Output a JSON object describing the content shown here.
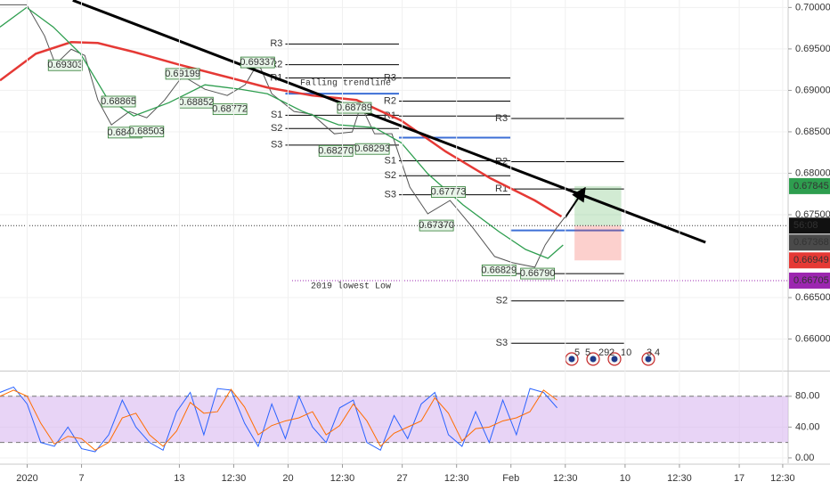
{
  "chart_data": [
    {
      "type": "line",
      "xlim": [
        -5,
        140
      ],
      "ylim": [
        0.6563,
        0.7009
      ],
      "yticks": [
        {
          "value": 0.7,
          "label": "0.70000"
        },
        {
          "value": 0.695,
          "label": "0.69500"
        },
        {
          "value": 0.69,
          "label": "0.69000"
        },
        {
          "value": 0.685,
          "label": "0.68500"
        },
        {
          "value": 0.68,
          "label": "0.68000"
        },
        {
          "value": 0.675,
          "label": "0.67500"
        },
        {
          "value": 0.665,
          "label": "0.66500"
        },
        {
          "value": 0.66,
          "label": "0.66000"
        }
      ],
      "grid": true,
      "series": [
        {
          "color": "#555555",
          "x": [
            -5,
            -0.1,
            3.2,
            5.2,
            8.1,
            10.6,
            13.0,
            15.5,
            18.8,
            22.0,
            25.3,
            28.6,
            32.7,
            36.8,
            40.1,
            42.5,
            45.0,
            49.1,
            52.4,
            56.5,
            59.8,
            61.4,
            63.9,
            67.1,
            70.4,
            73.7,
            77.8,
            81.9,
            86.0,
            89.3,
            93.4,
            95.3,
            97.5,
            98.9
          ],
          "values": [
            0.70032,
            0.70032,
            0.69657,
            0.69313,
            0.69496,
            0.69421,
            0.68884,
            0.68584,
            0.68745,
            0.68669,
            0.68884,
            0.69174,
            0.69013,
            0.68938,
            0.69067,
            0.69335,
            0.68959,
            0.68745,
            0.68712,
            0.68476,
            0.68498,
            0.6882,
            0.68476,
            0.68476,
            0.67833,
            0.67511,
            0.67672,
            0.6735,
            0.66996,
            0.66921,
            0.66867,
            0.67135,
            0.6735,
            0.67468
          ]
        },
        {
          "color": "#e53935",
          "x": [
            -5,
            1.6,
            8.1,
            13.0,
            19.6,
            27.8,
            36.0,
            44.2,
            52.4,
            60.6,
            68.8,
            77.0,
            85.2,
            93.4,
            98.3
          ],
          "values": [
            0.6912,
            0.69442,
            0.69582,
            0.69571,
            0.69464,
            0.69313,
            0.69174,
            0.69034,
            0.68938,
            0.68884,
            0.68637,
            0.68262,
            0.6794,
            0.67672,
            0.67478
          ]
        },
        {
          "color": "#2e9e4f",
          "x": [
            -5,
            -0.1,
            4.8,
            9.8,
            14.7,
            19.6,
            26.1,
            32.7,
            39.3,
            44.2,
            50.7,
            57.3,
            63.9,
            68.8,
            73.7,
            80.2,
            86.8,
            91.7,
            95.8,
            98.6
          ],
          "values": [
            0.69764,
            0.7,
            0.69764,
            0.69442,
            0.68906,
            0.68691,
            0.68852,
            0.69067,
            0.69013,
            0.68959,
            0.68745,
            0.68584,
            0.68551,
            0.68369,
            0.67994,
            0.67618,
            0.67296,
            0.67081,
            0.66974,
            0.67135
          ]
        }
      ],
      "swing_labels": {
        "x": [
          7.0,
          28.6,
          42.4,
          16.8,
          31.1,
          37.3,
          18.0,
          22.0,
          60.2,
          56.8,
          63.5,
          77.5,
          75.3,
          86.8,
          93.9
        ],
        "values": [
          0.69303,
          0.69199,
          0.69337,
          0.68865,
          0.68852,
          0.68772,
          0.6849,
          0.68503,
          0.68789,
          0.6827,
          0.68293,
          0.67773,
          0.6737,
          0.66829,
          0.6679
        ],
        "value_labels": [
          "0.69303",
          "0.69199",
          "0.69337",
          "0.68865",
          "0.68852",
          "0.68772",
          "0.68490",
          "0.68503",
          "0.68789",
          "0.68270",
          "0.68293",
          "0.67773",
          "0.67370",
          "0.66829",
          "0.66790"
        ]
      },
      "pivots": [
        {
          "x": [
            47.5,
            68.4
          ],
          "levels": [
            0.6956,
            0.6931,
            0.6915,
            0.6896,
            0.687,
            0.6854,
            0.6834
          ],
          "labels": [
            "R3",
            "R2",
            "R1",
            null,
            "S1",
            "S2",
            "S3"
          ]
        },
        {
          "x": [
            68.4,
            88.9
          ],
          "levels": [
            0.6915,
            0.6887,
            0.6869,
            0.6843,
            0.6815,
            0.6797,
            0.6774
          ],
          "labels": [
            "R3",
            "R2",
            "R1",
            null,
            "S1",
            "S2",
            "S3"
          ]
        },
        {
          "x": [
            88.9,
            109.8
          ],
          "levels": [
            0.6866,
            0.6814,
            0.6781,
            0.6731,
            0.6679,
            0.6646,
            0.6595
          ],
          "labels": [
            "R3",
            "R2",
            "R1",
            null,
            null,
            "S2",
            "S3"
          ]
        }
      ],
      "pivot_color": "#000000",
      "pivot_mid_color": "#3d6fd6",
      "trendline": {
        "x": [
          8.4,
          124.8
        ],
        "values": [
          0.70086,
          0.67167
        ]
      },
      "arrow": {
        "x": [
          98.9,
          102.4
        ],
        "values": [
          0.67457,
          0.678
        ]
      },
      "position": {
        "x": [
          100.7,
          109.3
        ],
        "entry": 0.67368,
        "target": 0.67845,
        "stop": 0.66949
      },
      "price_labels": [
        {
          "value": 0.67845,
          "color": "#2e9e4f"
        },
        {
          "value": 0.67368,
          "color": "#4a4a4a"
        },
        {
          "value": 0.66949,
          "color": "#e53935"
        },
        {
          "value": 0.66705,
          "color": "#9c27b0"
        }
      ],
      "countdown": "56:08",
      "annotations": [
        "Falling trendline",
        "2019 lowest Low"
      ],
      "events": [
        "5",
        "5",
        "29",
        "2",
        "10",
        "3",
        "4"
      ]
    },
    {
      "type": "line",
      "xlim": [
        -5,
        140
      ],
      "ylim": [
        -7,
        111
      ],
      "yticks": [
        {
          "value": 80,
          "label": "80.00"
        },
        {
          "value": 40,
          "label": "40.00"
        },
        {
          "value": 0,
          "label": "0.00"
        }
      ],
      "xticks": [
        {
          "value": 0,
          "label": "2020"
        },
        {
          "value": 10,
          "label": "7"
        },
        {
          "value": 28,
          "label": "13"
        },
        {
          "value": 38,
          "label": "12:30"
        },
        {
          "value": 48,
          "label": "20"
        },
        {
          "value": 58,
          "label": "12:30"
        },
        {
          "value": 69,
          "label": "27"
        },
        {
          "value": 79,
          "label": "12:30"
        },
        {
          "value": 89,
          "label": "Feb"
        },
        {
          "value": 99,
          "label": "12:30"
        },
        {
          "value": 110,
          "label": "10"
        },
        {
          "value": 120,
          "label": "12:30"
        },
        {
          "value": 131,
          "label": "17"
        },
        {
          "value": 139,
          "label": "12:30"
        }
      ],
      "grid": true,
      "levels": [
        20,
        80
      ],
      "band_color": "#d9b8f0",
      "series": [
        {
          "color": "#2962ff",
          "x": [
            -5,
            -2.5,
            0,
            2.5,
            5,
            7.5,
            10,
            12.5,
            15,
            17.5,
            20,
            22.5,
            25,
            27.5,
            30,
            32.5,
            35,
            37.5,
            40,
            42.5,
            45,
            47.5,
            50,
            52.5,
            55,
            57.5,
            60,
            62.5,
            65,
            67.5,
            70,
            72.5,
            75,
            77.5,
            80,
            82.5,
            85,
            87.5,
            90,
            92.5,
            95,
            97.5
          ],
          "values": [
            85,
            92,
            70,
            20,
            15,
            40,
            12,
            8,
            30,
            75,
            40,
            20,
            10,
            60,
            85,
            30,
            90,
            88,
            45,
            15,
            70,
            25,
            80,
            40,
            20,
            65,
            75,
            20,
            10,
            55,
            25,
            70,
            85,
            30,
            15,
            60,
            20,
            75,
            30,
            90,
            85,
            65
          ]
        },
        {
          "color": "#ff6d00",
          "x": [
            -5,
            -2.5,
            0,
            2.5,
            5,
            7.5,
            10,
            12.5,
            15,
            17.5,
            20,
            22.5,
            25,
            27.5,
            30,
            32.5,
            35,
            37.5,
            40,
            42.5,
            45,
            47.5,
            50,
            52.5,
            55,
            57.5,
            60,
            62.5,
            65,
            67.5,
            70,
            72.5,
            75,
            77.5,
            80,
            82.5,
            85,
            87.5,
            90,
            92.5,
            95,
            97.5
          ],
          "values": [
            80,
            88,
            80,
            45,
            18,
            28,
            25,
            10,
            20,
            52,
            58,
            30,
            15,
            35,
            72,
            58,
            60,
            89,
            66,
            30,
            42,
            48,
            52,
            60,
            30,
            42,
            70,
            48,
            15,
            32,
            40,
            48,
            78,
            58,
            22,
            38,
            40,
            48,
            52,
            60,
            88,
            75
          ]
        }
      ]
    }
  ]
}
